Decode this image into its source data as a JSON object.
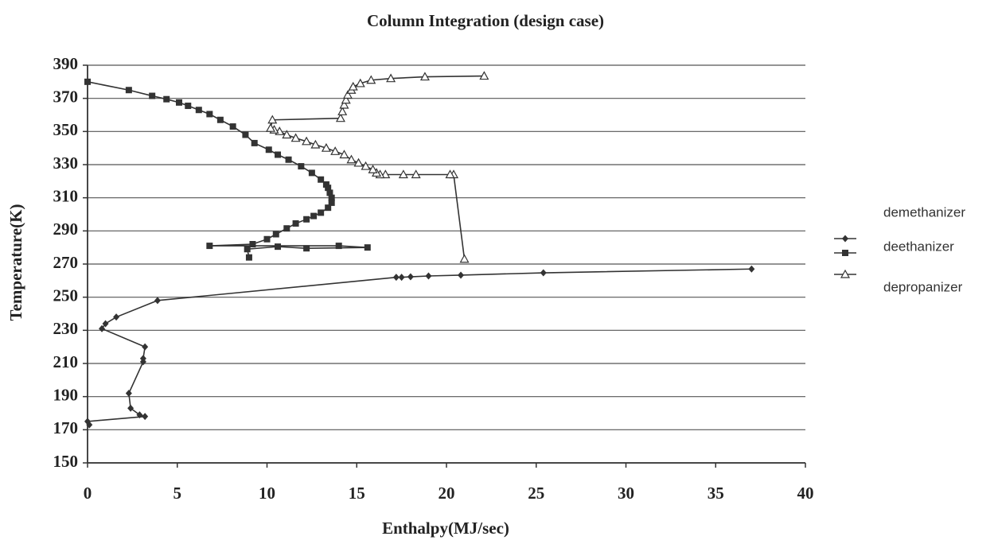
{
  "chart_data": {
    "type": "line",
    "title": "Column Integration (design case)",
    "x_label": "Enthalpy(MJ/sec)",
    "y_label": "Temperature(K)",
    "xlim": [
      0,
      40
    ],
    "xticks": [
      0,
      5,
      10,
      15,
      20,
      25,
      30,
      35,
      40
    ],
    "ylim": [
      150,
      390
    ],
    "yticks": [
      150,
      170,
      190,
      210,
      230,
      250,
      270,
      290,
      310,
      330,
      350,
      370,
      390
    ],
    "grid": true,
    "legend": "right",
    "series": [
      {
        "name": "demethanizer",
        "color": "#333333",
        "marker": "diamond",
        "x": [
          0.1,
          0.0,
          3.2,
          2.9,
          2.4,
          2.3,
          3.1,
          3.1,
          3.2,
          0.8,
          1.0,
          1.6,
          3.9,
          17.2,
          17.5,
          18.0,
          19.0,
          20.8,
          25.4,
          37.0
        ],
        "values": [
          173,
          175,
          178,
          179,
          183,
          192,
          211,
          213,
          220,
          231,
          234,
          238,
          248,
          262,
          262,
          262.3,
          262.8,
          263.3,
          264.7,
          267
        ]
      },
      {
        "name": "deethanizer",
        "color": "#333333",
        "marker": "square",
        "x": [
          0,
          2.3,
          3.6,
          4.4,
          5.1,
          5.6,
          6.2,
          6.8,
          7.4,
          8.1,
          8.8,
          9.3,
          10.1,
          10.6,
          11.2,
          11.9,
          12.5,
          13.0,
          13.3,
          13.4,
          13.5,
          13.6,
          13.6,
          13.4,
          13.0,
          12.6,
          12.2,
          11.6,
          11.1,
          10.5,
          10.0,
          9.2,
          6.8,
          14.0,
          15.6,
          12.2,
          10.6,
          8.9,
          9.0
        ],
        "values": [
          380,
          375,
          371.5,
          369.5,
          367.5,
          365.5,
          363,
          360.5,
          357,
          353,
          348,
          343,
          339,
          336,
          333,
          329,
          325,
          321,
          318,
          316,
          313,
          310,
          307,
          304,
          301,
          299,
          297,
          294.5,
          291.5,
          288,
          285,
          282,
          281,
          281,
          280,
          279.5,
          280.5,
          279,
          274
        ]
      },
      {
        "name": "depropanizer",
        "color": "#333333",
        "marker": "triangle",
        "x": [
          21.0,
          20.4,
          20.2,
          18.3,
          17.6,
          16.6,
          16.3,
          16.1,
          15.9,
          15.5,
          15.1,
          14.7,
          14.3,
          13.8,
          13.3,
          12.7,
          12.2,
          11.6,
          11.1,
          10.7,
          10.4,
          10.2,
          10.3,
          14.1,
          14.2,
          14.3,
          14.4,
          14.5,
          14.7,
          14.8,
          15.2,
          15.8,
          16.9,
          18.8,
          22.1
        ],
        "values": [
          273,
          324,
          324,
          324,
          324,
          324,
          324,
          325,
          327,
          329,
          331,
          333,
          336,
          338,
          340,
          342,
          344,
          346,
          348,
          350,
          351,
          352,
          357,
          358,
          362,
          366,
          369,
          372,
          375,
          377,
          379,
          381,
          382,
          383,
          383.5
        ]
      }
    ]
  }
}
